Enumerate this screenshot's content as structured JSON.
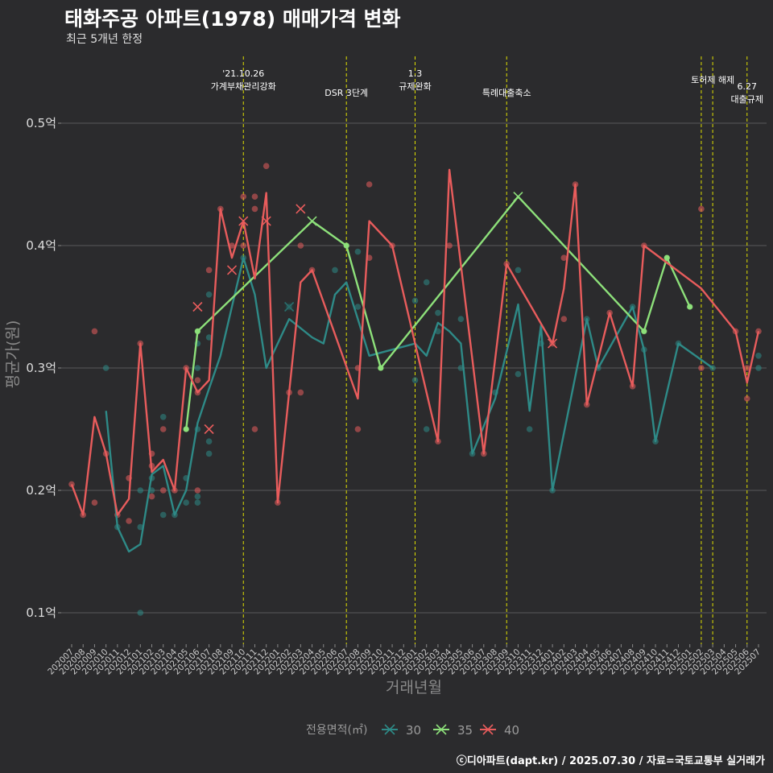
{
  "header": {
    "title": "태화주공 아파트(1978) 매매가격 변화",
    "subtitle": "최근 5개년 한정",
    "caption": "ⓒ디아파트(dapt.kr) / 2025.07.30 / 자료=국토교통부 실거래가"
  },
  "colors": {
    "background": "#2b2b2d",
    "grid": "#5a5a5a",
    "event_line": "#e0e000",
    "s30": "#2e8a87",
    "s35": "#8de07a",
    "s40": "#e85c5c"
  },
  "chart_data": {
    "type": "line",
    "title": "태화주공 아파트(1978) 매매가격 변화",
    "subtitle": "최근 5개년 한정",
    "xlabel": "거래년월",
    "ylabel": "평균가(원)",
    "ylim": [
      0.08,
      0.55
    ],
    "y_ticks": [
      {
        "v": 0.1,
        "label": "0.1억"
      },
      {
        "v": 0.2,
        "label": "0.2억"
      },
      {
        "v": 0.3,
        "label": "0.3억"
      },
      {
        "v": 0.4,
        "label": "0.4억"
      },
      {
        "v": 0.5,
        "label": "0.5억"
      }
    ],
    "grid": true,
    "legend_title": "전용면적(㎡)",
    "legend_position": "bottom",
    "x_categories": [
      "202007",
      "202008",
      "202009",
      "202010",
      "202011",
      "202012",
      "202101",
      "202102",
      "202103",
      "202104",
      "202105",
      "202106",
      "202107",
      "202108",
      "202109",
      "202110",
      "202111",
      "202112",
      "202201",
      "202202",
      "202203",
      "202204",
      "202205",
      "202206",
      "202207",
      "202208",
      "202209",
      "202210",
      "202211",
      "202212",
      "202301",
      "202302",
      "202303",
      "202304",
      "202305",
      "202306",
      "202307",
      "202308",
      "202309",
      "202310",
      "202311",
      "202312",
      "202401",
      "202402",
      "202403",
      "202404",
      "202405",
      "202406",
      "202407",
      "202408",
      "202409",
      "202410",
      "202411",
      "202412",
      "202501",
      "202502",
      "202503",
      "202504",
      "202505",
      "202506",
      "202507"
    ],
    "events": [
      {
        "x": "202110",
        "label": "'21.10.26\n가계부채관리강화",
        "row": 0
      },
      {
        "x": "202207",
        "label": "DSR 3단계",
        "row": 1
      },
      {
        "x": "202301",
        "label": "1.3\n규제완화",
        "row": 0
      },
      {
        "x": "202309",
        "label": "특례대출축소",
        "row": 1
      },
      {
        "x": "202502",
        "label": "",
        "row": 0
      },
      {
        "x": "202503",
        "label": "토허제 해제",
        "row": 0
      },
      {
        "x": "202506",
        "label": "6.27\n대출규제",
        "row": 2
      }
    ],
    "series": [
      {
        "name": "30",
        "color": "#2e8a87",
        "line": [
          [
            "202010",
            0.265
          ],
          [
            "202011",
            0.17
          ],
          [
            "202012",
            0.15
          ],
          [
            "202101",
            0.156
          ],
          [
            "202102",
            0.213
          ],
          [
            "202103",
            0.22
          ],
          [
            "202104",
            0.18
          ],
          [
            "202105",
            0.2
          ],
          [
            "202106",
            0.255
          ],
          [
            "202107",
            0.283
          ],
          [
            "202108",
            0.31
          ],
          [
            "202109",
            0.35
          ],
          [
            "202110",
            0.39
          ],
          [
            "202111",
            0.36
          ],
          [
            "202112",
            0.3
          ],
          [
            "202202",
            0.34
          ],
          [
            "202204",
            0.325
          ],
          [
            "202205",
            0.32
          ],
          [
            "202206",
            0.36
          ],
          [
            "202207",
            0.37
          ],
          [
            "202209",
            0.31
          ],
          [
            "202211",
            0.315
          ],
          [
            "202301",
            0.32
          ],
          [
            "202302",
            0.31
          ],
          [
            "202303",
            0.337
          ],
          [
            "202304",
            0.33
          ],
          [
            "202305",
            0.32
          ],
          [
            "202306",
            0.23
          ],
          [
            "202308",
            0.275
          ],
          [
            "202310",
            0.352
          ],
          [
            "202311",
            0.265
          ],
          [
            "202312",
            0.335
          ],
          [
            "202401",
            0.2
          ],
          [
            "202404",
            0.34
          ],
          [
            "202405",
            0.3
          ],
          [
            "202408",
            0.35
          ],
          [
            "202409",
            0.315
          ],
          [
            "202410",
            0.24
          ],
          [
            "202412",
            0.32
          ],
          [
            "202503",
            0.3
          ]
        ],
        "points": [
          [
            "202010",
            0.3
          ],
          [
            "202011",
            0.17
          ],
          [
            "202101",
            0.2
          ],
          [
            "202101",
            0.17
          ],
          [
            "202101",
            0.1
          ],
          [
            "202102",
            0.21
          ],
          [
            "202102",
            0.2
          ],
          [
            "202103",
            0.26
          ],
          [
            "202103",
            0.18
          ],
          [
            "202104",
            0.18
          ],
          [
            "202105",
            0.19
          ],
          [
            "202105",
            0.21
          ],
          [
            "202106",
            0.19
          ],
          [
            "202106",
            0.195
          ],
          [
            "202106",
            0.25
          ],
          [
            "202106",
            0.3
          ],
          [
            "202106",
            0.32
          ],
          [
            "202107",
            0.36
          ],
          [
            "202107",
            0.23
          ],
          [
            "202107",
            0.24
          ],
          [
            "202107",
            0.325
          ],
          [
            "202110",
            0.39
          ],
          [
            "202202",
            0.35
          ],
          [
            "202206",
            0.38
          ],
          [
            "202208",
            0.35
          ],
          [
            "202208",
            0.395
          ],
          [
            "202301",
            0.29
          ],
          [
            "202301",
            0.355
          ],
          [
            "202302",
            0.37
          ],
          [
            "202302",
            0.25
          ],
          [
            "202303",
            0.345
          ],
          [
            "202303",
            0.33
          ],
          [
            "202305",
            0.34
          ],
          [
            "202305",
            0.3
          ],
          [
            "202306",
            0.23
          ],
          [
            "202308",
            0.28
          ],
          [
            "202310",
            0.38
          ],
          [
            "202310",
            0.295
          ],
          [
            "202311",
            0.25
          ],
          [
            "202312",
            0.32
          ],
          [
            "202401",
            0.2
          ],
          [
            "202404",
            0.34
          ],
          [
            "202405",
            0.3
          ],
          [
            "202408",
            0.35
          ],
          [
            "202409",
            0.315
          ],
          [
            "202410",
            0.24
          ],
          [
            "202412",
            0.32
          ],
          [
            "202503",
            0.3
          ],
          [
            "202507",
            0.31
          ],
          [
            "202507",
            0.3
          ]
        ],
        "crosses": [
          [
            "202202",
            0.35
          ]
        ]
      },
      {
        "name": "35",
        "color": "#8de07a",
        "line": [
          [
            "202105",
            0.25
          ],
          [
            "202106",
            0.33
          ],
          [
            "202204",
            0.42
          ],
          [
            "202207",
            0.4
          ],
          [
            "202210",
            0.3
          ],
          [
            "202310",
            0.44
          ],
          [
            "202409",
            0.33
          ],
          [
            "202411",
            0.39
          ],
          [
            "202501",
            0.35
          ]
        ],
        "points": [
          [
            "202105",
            0.25
          ],
          [
            "202106",
            0.33
          ],
          [
            "202207",
            0.4
          ],
          [
            "202210",
            0.3
          ],
          [
            "202409",
            0.33
          ],
          [
            "202411",
            0.39
          ],
          [
            "202501",
            0.35
          ]
        ],
        "crosses": [
          [
            "202204",
            0.42
          ],
          [
            "202310",
            0.44
          ]
        ]
      },
      {
        "name": "40",
        "color": "#e85c5c",
        "line": [
          [
            "202007",
            0.205
          ],
          [
            "202008",
            0.18
          ],
          [
            "202009",
            0.26
          ],
          [
            "202010",
            0.23
          ],
          [
            "202011",
            0.18
          ],
          [
            "202012",
            0.193
          ],
          [
            "202101",
            0.32
          ],
          [
            "202102",
            0.215
          ],
          [
            "202103",
            0.225
          ],
          [
            "202104",
            0.2
          ],
          [
            "202105",
            0.3
          ],
          [
            "202106",
            0.28
          ],
          [
            "202107",
            0.29
          ],
          [
            "202108",
            0.43
          ],
          [
            "202109",
            0.39
          ],
          [
            "202110",
            0.42
          ],
          [
            "202111",
            0.373
          ],
          [
            "202112",
            0.443
          ],
          [
            "202201",
            0.19
          ],
          [
            "202202",
            0.28
          ],
          [
            "202203",
            0.37
          ],
          [
            "202204",
            0.38
          ],
          [
            "202208",
            0.275
          ],
          [
            "202209",
            0.42
          ],
          [
            "202211",
            0.4
          ],
          [
            "202303",
            0.24
          ],
          [
            "202304",
            0.462
          ],
          [
            "202307",
            0.23
          ],
          [
            "202309",
            0.385
          ],
          [
            "202401",
            0.32
          ],
          [
            "202402",
            0.365
          ],
          [
            "202403",
            0.45
          ],
          [
            "202404",
            0.27
          ],
          [
            "202406",
            0.345
          ],
          [
            "202408",
            0.285
          ],
          [
            "202409",
            0.4
          ],
          [
            "202502",
            0.365
          ],
          [
            "202505",
            0.33
          ],
          [
            "202506",
            0.288
          ],
          [
            "202507",
            0.33
          ]
        ],
        "points": [
          [
            "202007",
            0.205
          ],
          [
            "202008",
            0.18
          ],
          [
            "202009",
            0.33
          ],
          [
            "202009",
            0.19
          ],
          [
            "202010",
            0.23
          ],
          [
            "202011",
            0.18
          ],
          [
            "202012",
            0.21
          ],
          [
            "202012",
            0.175
          ],
          [
            "202101",
            0.32
          ],
          [
            "202102",
            0.23
          ],
          [
            "202102",
            0.22
          ],
          [
            "202102",
            0.195
          ],
          [
            "202103",
            0.25
          ],
          [
            "202103",
            0.2
          ],
          [
            "202104",
            0.2
          ],
          [
            "202105",
            0.3
          ],
          [
            "202106",
            0.29
          ],
          [
            "202106",
            0.2
          ],
          [
            "202106",
            0.28
          ],
          [
            "202107",
            0.38
          ],
          [
            "202108",
            0.43
          ],
          [
            "202109",
            0.4
          ],
          [
            "202110",
            0.44
          ],
          [
            "202110",
            0.4
          ],
          [
            "202111",
            0.44
          ],
          [
            "202111",
            0.43
          ],
          [
            "202111",
            0.25
          ],
          [
            "202112",
            0.465
          ],
          [
            "202201",
            0.19
          ],
          [
            "202202",
            0.28
          ],
          [
            "202203",
            0.4
          ],
          [
            "202203",
            0.28
          ],
          [
            "202204",
            0.38
          ],
          [
            "202208",
            0.3
          ],
          [
            "202208",
            0.25
          ],
          [
            "202209",
            0.45
          ],
          [
            "202209",
            0.39
          ],
          [
            "202211",
            0.4
          ],
          [
            "202303",
            0.24
          ],
          [
            "202304",
            0.4
          ],
          [
            "202307",
            0.23
          ],
          [
            "202309",
            0.385
          ],
          [
            "202401",
            0.32
          ],
          [
            "202402",
            0.39
          ],
          [
            "202402",
            0.34
          ],
          [
            "202403",
            0.45
          ],
          [
            "202404",
            0.27
          ],
          [
            "202406",
            0.345
          ],
          [
            "202408",
            0.285
          ],
          [
            "202409",
            0.4
          ],
          [
            "202502",
            0.43
          ],
          [
            "202502",
            0.3
          ],
          [
            "202505",
            0.33
          ],
          [
            "202506",
            0.3
          ],
          [
            "202506",
            0.275
          ],
          [
            "202507",
            0.33
          ]
        ],
        "crosses": [
          [
            "202106",
            0.35
          ],
          [
            "202107",
            0.25
          ],
          [
            "202109",
            0.38
          ],
          [
            "202110",
            0.42
          ],
          [
            "202112",
            0.42
          ],
          [
            "202203",
            0.43
          ],
          [
            "202401",
            0.32
          ]
        ]
      }
    ]
  }
}
